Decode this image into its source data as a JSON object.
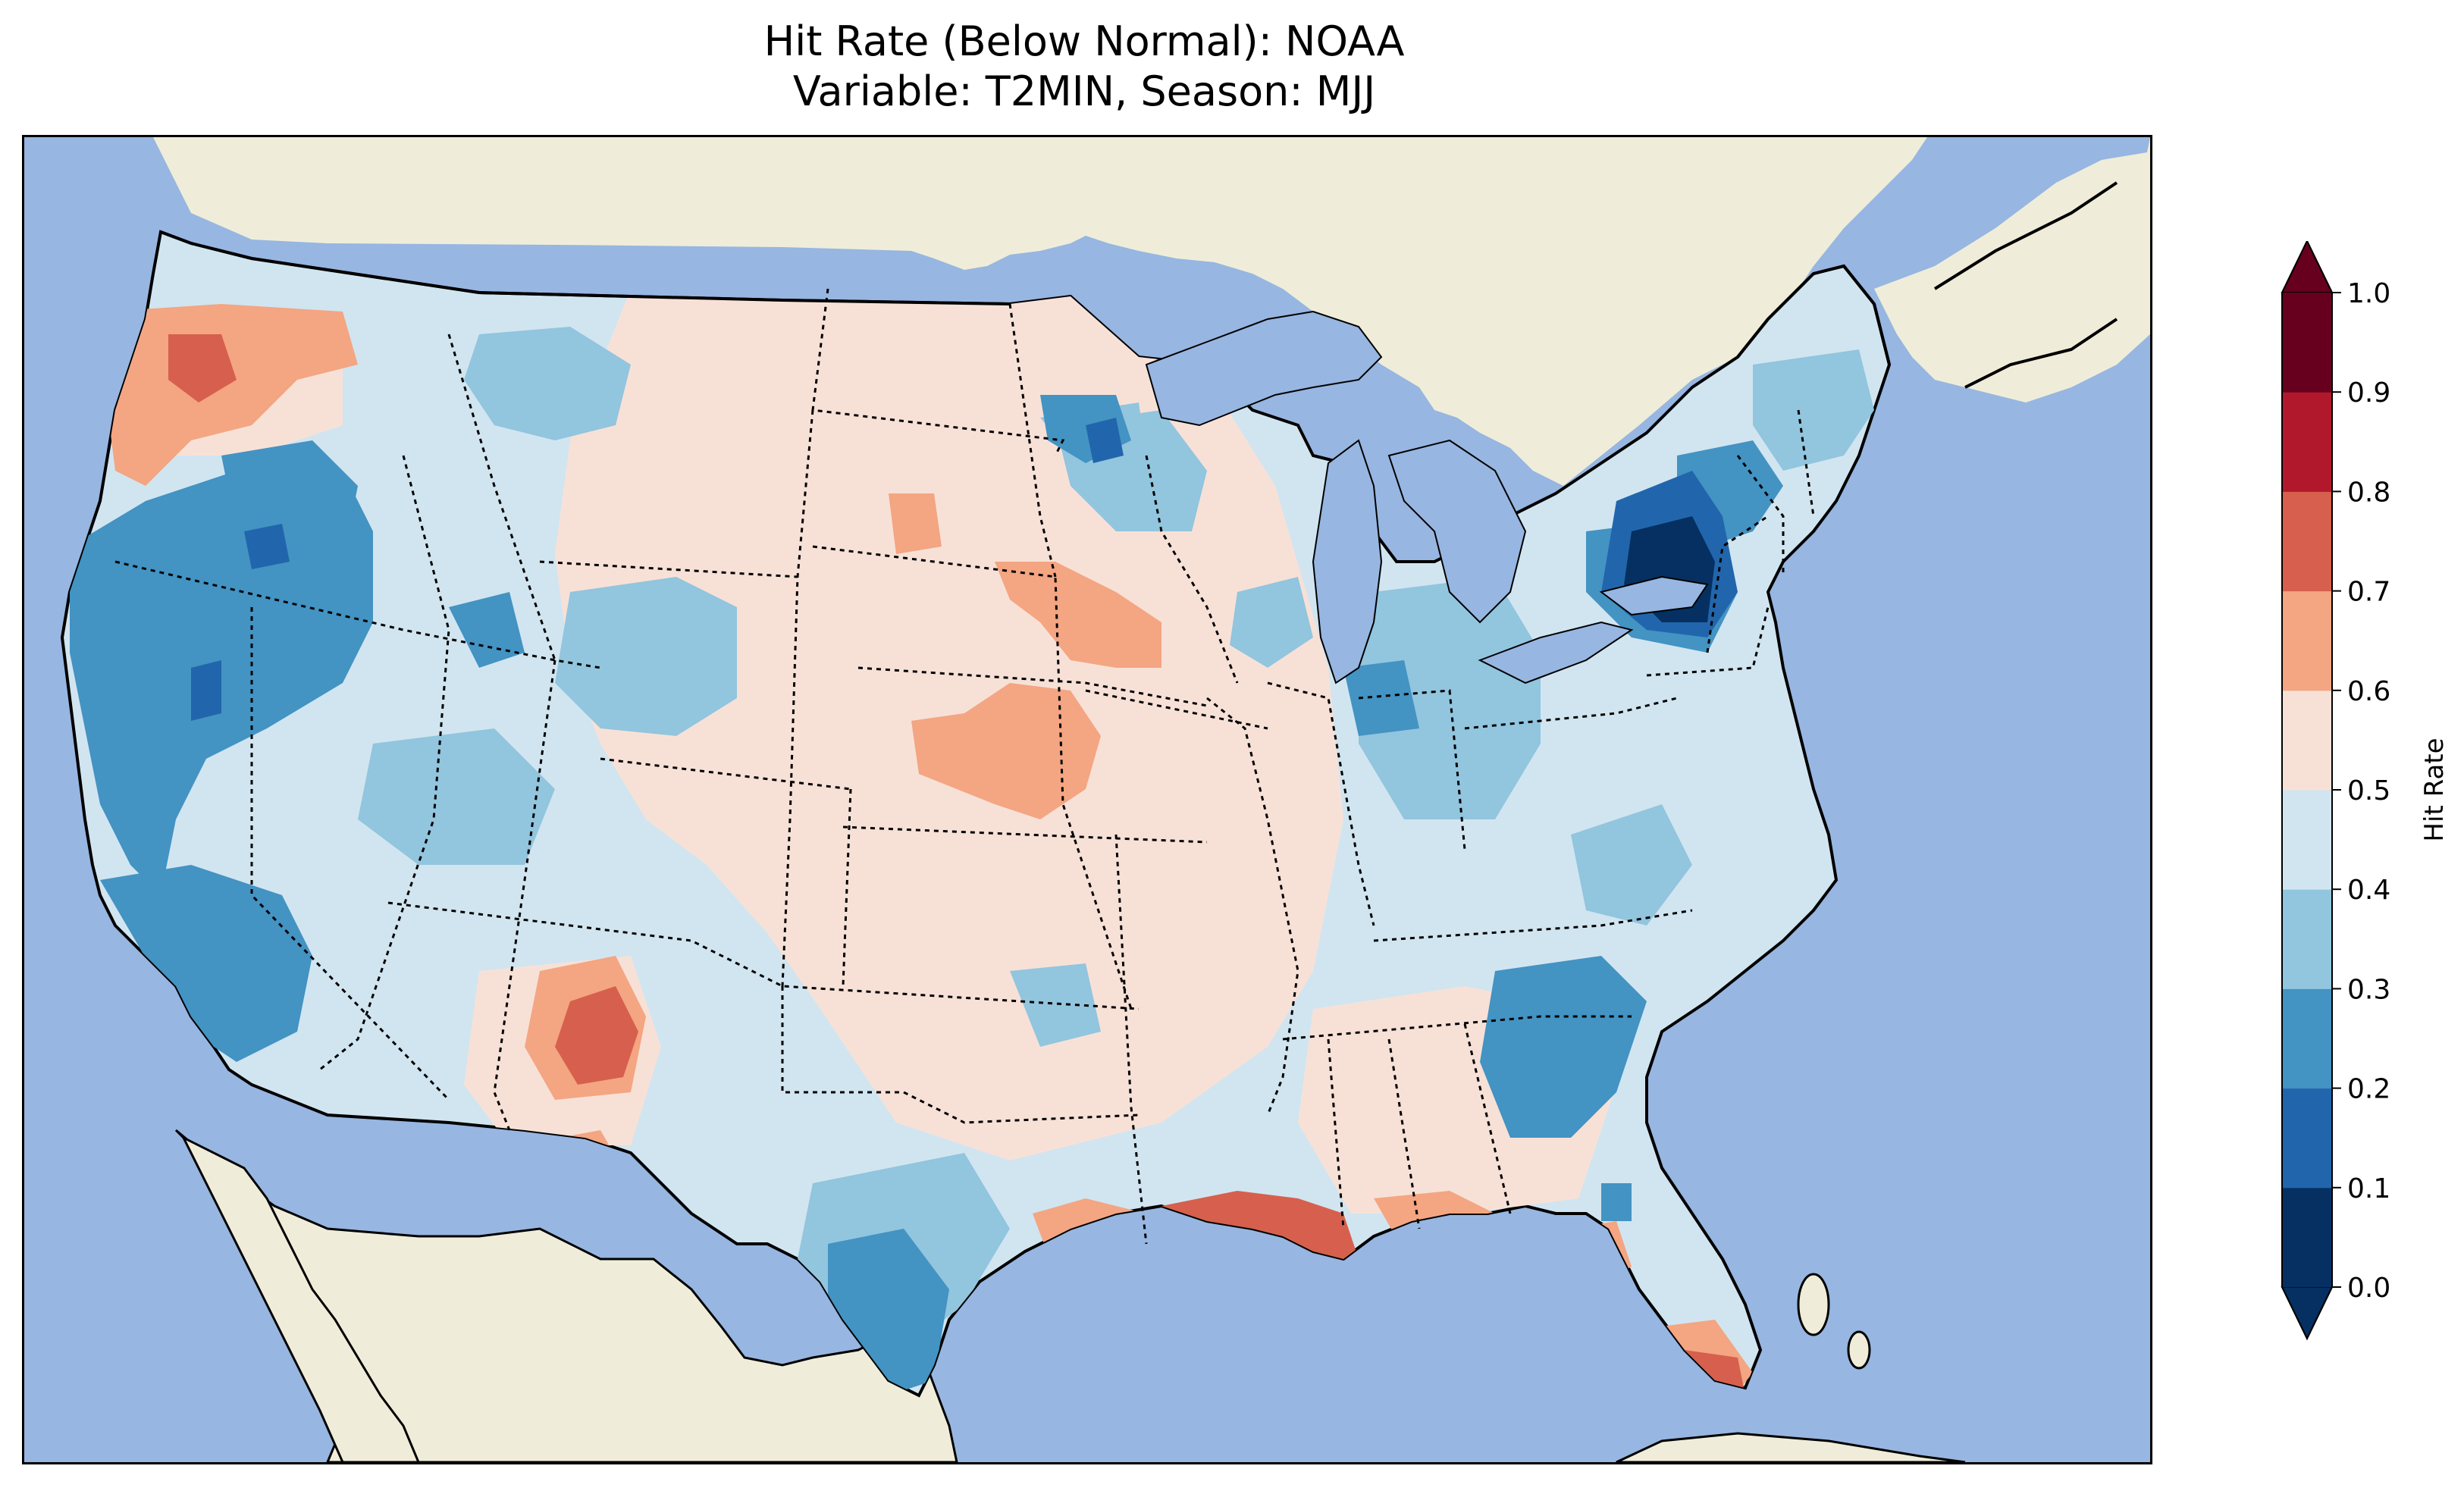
{
  "title": {
    "line1": "Hit Rate (Below Normal): NOAA",
    "line2": "Variable: T2MIN, Season: MJJ"
  },
  "colors": {
    "ocean": "#97b6e1",
    "land": "#efedd9",
    "lakes": "#97b6e1"
  },
  "colorbar": {
    "label": "Hit Rate",
    "ticks": [
      "0.0",
      "0.1",
      "0.2",
      "0.3",
      "0.4",
      "0.5",
      "0.6",
      "0.7",
      "0.8",
      "0.9",
      "1.0"
    ],
    "bins": [
      {
        "range": "0.0-0.1",
        "color": "#053061"
      },
      {
        "range": "0.1-0.2",
        "color": "#2166ac"
      },
      {
        "range": "0.2-0.3",
        "color": "#4393c3"
      },
      {
        "range": "0.3-0.4",
        "color": "#92c5de"
      },
      {
        "range": "0.4-0.5",
        "color": "#d1e5f0"
      },
      {
        "range": "0.5-0.6",
        "color": "#f7e1d7"
      },
      {
        "range": "0.6-0.7",
        "color": "#f4a582"
      },
      {
        "range": "0.7-0.8",
        "color": "#d6604d"
      },
      {
        "range": "0.8-0.9",
        "color": "#b2182b"
      },
      {
        "range": "0.9-1.0",
        "color": "#67001f"
      }
    ],
    "under_color": "#053061",
    "over_color": "#67001f"
  },
  "regions": [
    {
      "name": "Pacific Northwest coast",
      "bin": "0.6-0.7"
    },
    {
      "name": "Western Oregon & California",
      "bin": "0.2-0.3"
    },
    {
      "name": "Great Basin",
      "bin": "0.3-0.4"
    },
    {
      "name": "Northern Plains",
      "bin": "0.5-0.6"
    },
    {
      "name": "Arizona highlands",
      "bin": "0.7-0.8"
    },
    {
      "name": "Texas",
      "bin": "0.2-0.3"
    },
    {
      "name": "Louisiana",
      "bin": "0.7-0.8"
    },
    {
      "name": "Gulf coast",
      "bin": "0.6-0.7"
    },
    {
      "name": "Upper Midwest",
      "bin": "0.3-0.4"
    },
    {
      "name": "Southeast",
      "bin": "0.2-0.3"
    },
    {
      "name": "New York",
      "bin": "0.0-0.1"
    },
    {
      "name": "New England",
      "bin": "0.3-0.4"
    },
    {
      "name": "South Florida",
      "bin": "0.7-0.8"
    }
  ]
}
